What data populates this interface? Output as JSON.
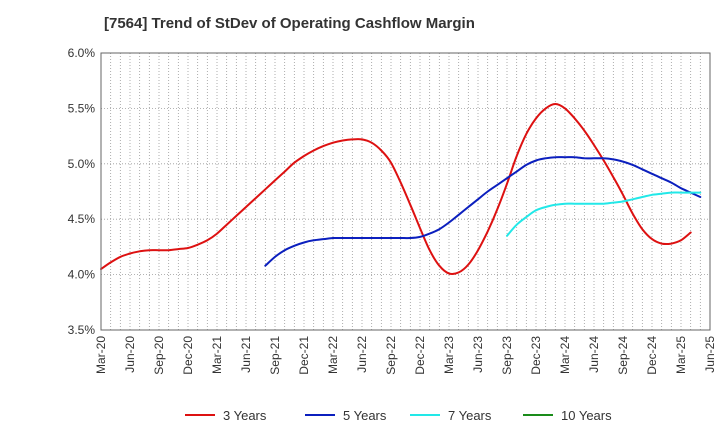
{
  "chart_data": {
    "type": "line",
    "title": "[7564]  Trend of StDev of Operating Cashflow Margin",
    "xlabel": "",
    "ylabel": "",
    "ylim": [
      3.5,
      6.0
    ],
    "y_ticks": [
      "3.5%",
      "4.0%",
      "4.5%",
      "5.0%",
      "5.5%",
      "6.0%"
    ],
    "y_tick_values": [
      3.5,
      4.0,
      4.5,
      5.0,
      5.5,
      6.0
    ],
    "x_ticks": [
      "Mar-20",
      "Jun-20",
      "Sep-20",
      "Dec-20",
      "Mar-21",
      "Jun-21",
      "Sep-21",
      "Dec-21",
      "Mar-22",
      "Jun-22",
      "Sep-22",
      "Dec-22",
      "Mar-23",
      "Jun-23",
      "Sep-23",
      "Dec-23",
      "Mar-24",
      "Jun-24",
      "Sep-24",
      "Dec-24",
      "Mar-25",
      "Jun-25"
    ],
    "grid": true,
    "legend_position": "bottom",
    "series": [
      {
        "name": "3 Years",
        "color": "#dd1111",
        "points": [
          [
            "Mar-20",
            4.05
          ],
          [
            "Apr-20",
            4.11
          ],
          [
            "May-20",
            4.16
          ],
          [
            "Jun-20",
            4.19
          ],
          [
            "Jul-20",
            4.21
          ],
          [
            "Aug-20",
            4.22
          ],
          [
            "Sep-20",
            4.22
          ],
          [
            "Oct-20",
            4.22
          ],
          [
            "Nov-20",
            4.23
          ],
          [
            "Dec-20",
            4.24
          ],
          [
            "Jan-21",
            4.27
          ],
          [
            "Feb-21",
            4.31
          ],
          [
            "Mar-21",
            4.37
          ],
          [
            "Apr-21",
            4.45
          ],
          [
            "May-21",
            4.53
          ],
          [
            "Jun-21",
            4.61
          ],
          [
            "Jul-21",
            4.69
          ],
          [
            "Aug-21",
            4.77
          ],
          [
            "Sep-21",
            4.85
          ],
          [
            "Oct-21",
            4.93
          ],
          [
            "Nov-21",
            5.01
          ],
          [
            "Dec-21",
            5.07
          ],
          [
            "Jan-22",
            5.12
          ],
          [
            "Feb-22",
            5.16
          ],
          [
            "Mar-22",
            5.19
          ],
          [
            "Apr-22",
            5.21
          ],
          [
            "May-22",
            5.22
          ],
          [
            "Jun-22",
            5.22
          ],
          [
            "Jul-22",
            5.19
          ],
          [
            "Aug-22",
            5.12
          ],
          [
            "Sep-22",
            5.01
          ],
          [
            "Oct-22",
            4.83
          ],
          [
            "Nov-22",
            4.63
          ],
          [
            "Dec-22",
            4.42
          ],
          [
            "Jan-23",
            4.22
          ],
          [
            "Feb-23",
            4.08
          ],
          [
            "Mar-23",
            4.01
          ],
          [
            "Apr-23",
            4.02
          ],
          [
            "May-23",
            4.09
          ],
          [
            "Jun-23",
            4.22
          ],
          [
            "Jul-23",
            4.39
          ],
          [
            "Aug-23",
            4.59
          ],
          [
            "Sep-23",
            4.82
          ],
          [
            "Oct-23",
            5.07
          ],
          [
            "Nov-23",
            5.27
          ],
          [
            "Dec-23",
            5.41
          ],
          [
            "Jan-24",
            5.5
          ],
          [
            "Feb-24",
            5.54
          ],
          [
            "Mar-24",
            5.5
          ],
          [
            "Apr-24",
            5.41
          ],
          [
            "May-24",
            5.3
          ],
          [
            "Jun-24",
            5.17
          ],
          [
            "Jul-24",
            5.03
          ],
          [
            "Aug-24",
            4.88
          ],
          [
            "Sep-24",
            4.72
          ],
          [
            "Oct-24",
            4.55
          ],
          [
            "Nov-24",
            4.41
          ],
          [
            "Dec-24",
            4.32
          ],
          [
            "Jan-25",
            4.28
          ],
          [
            "Feb-25",
            4.28
          ],
          [
            "Mar-25",
            4.31
          ],
          [
            "Apr-25",
            4.38
          ]
        ]
      },
      {
        "name": "5 Years",
        "color": "#0b1fbe",
        "points": [
          [
            "Aug-21",
            4.08
          ],
          [
            "Sep-21",
            4.16
          ],
          [
            "Oct-21",
            4.22
          ],
          [
            "Nov-21",
            4.26
          ],
          [
            "Dec-21",
            4.29
          ],
          [
            "Jan-22",
            4.31
          ],
          [
            "Feb-22",
            4.32
          ],
          [
            "Mar-22",
            4.33
          ],
          [
            "Apr-22",
            4.33
          ],
          [
            "May-22",
            4.33
          ],
          [
            "Jun-22",
            4.33
          ],
          [
            "Jul-22",
            4.33
          ],
          [
            "Aug-22",
            4.33
          ],
          [
            "Sep-22",
            4.33
          ],
          [
            "Oct-22",
            4.33
          ],
          [
            "Nov-22",
            4.33
          ],
          [
            "Dec-22",
            4.34
          ],
          [
            "Jan-23",
            4.37
          ],
          [
            "Feb-23",
            4.41
          ],
          [
            "Mar-23",
            4.47
          ],
          [
            "Apr-23",
            4.54
          ],
          [
            "May-23",
            4.61
          ],
          [
            "Jun-23",
            4.68
          ],
          [
            "Jul-23",
            4.75
          ],
          [
            "Aug-23",
            4.81
          ],
          [
            "Sep-23",
            4.87
          ],
          [
            "Oct-23",
            4.93
          ],
          [
            "Nov-23",
            4.99
          ],
          [
            "Dec-23",
            5.03
          ],
          [
            "Jan-24",
            5.05
          ],
          [
            "Feb-24",
            5.06
          ],
          [
            "Mar-24",
            5.06
          ],
          [
            "Apr-24",
            5.06
          ],
          [
            "May-24",
            5.05
          ],
          [
            "Jun-24",
            5.05
          ],
          [
            "Jul-24",
            5.05
          ],
          [
            "Aug-24",
            5.04
          ],
          [
            "Sep-24",
            5.02
          ],
          [
            "Oct-24",
            4.99
          ],
          [
            "Nov-24",
            4.95
          ],
          [
            "Dec-24",
            4.91
          ],
          [
            "Jan-25",
            4.87
          ],
          [
            "Feb-25",
            4.83
          ],
          [
            "Mar-25",
            4.78
          ],
          [
            "Apr-25",
            4.74
          ],
          [
            "May-25",
            4.7
          ]
        ]
      },
      {
        "name": "7 Years",
        "color": "#22e8e8",
        "points": [
          [
            "Sep-23",
            4.35
          ],
          [
            "Oct-23",
            4.45
          ],
          [
            "Nov-23",
            4.52
          ],
          [
            "Dec-23",
            4.58
          ],
          [
            "Jan-24",
            4.61
          ],
          [
            "Feb-24",
            4.63
          ],
          [
            "Mar-24",
            4.64
          ],
          [
            "Apr-24",
            4.64
          ],
          [
            "May-24",
            4.64
          ],
          [
            "Jun-24",
            4.64
          ],
          [
            "Jul-24",
            4.64
          ],
          [
            "Aug-24",
            4.65
          ],
          [
            "Sep-24",
            4.66
          ],
          [
            "Oct-24",
            4.68
          ],
          [
            "Nov-24",
            4.7
          ],
          [
            "Dec-24",
            4.72
          ],
          [
            "Jan-25",
            4.73
          ],
          [
            "Feb-25",
            4.74
          ],
          [
            "Mar-25",
            4.74
          ],
          [
            "Apr-25",
            4.74
          ],
          [
            "May-25",
            4.74
          ]
        ]
      },
      {
        "name": "10 Years",
        "color": "#1a8c1a",
        "points": []
      }
    ]
  }
}
